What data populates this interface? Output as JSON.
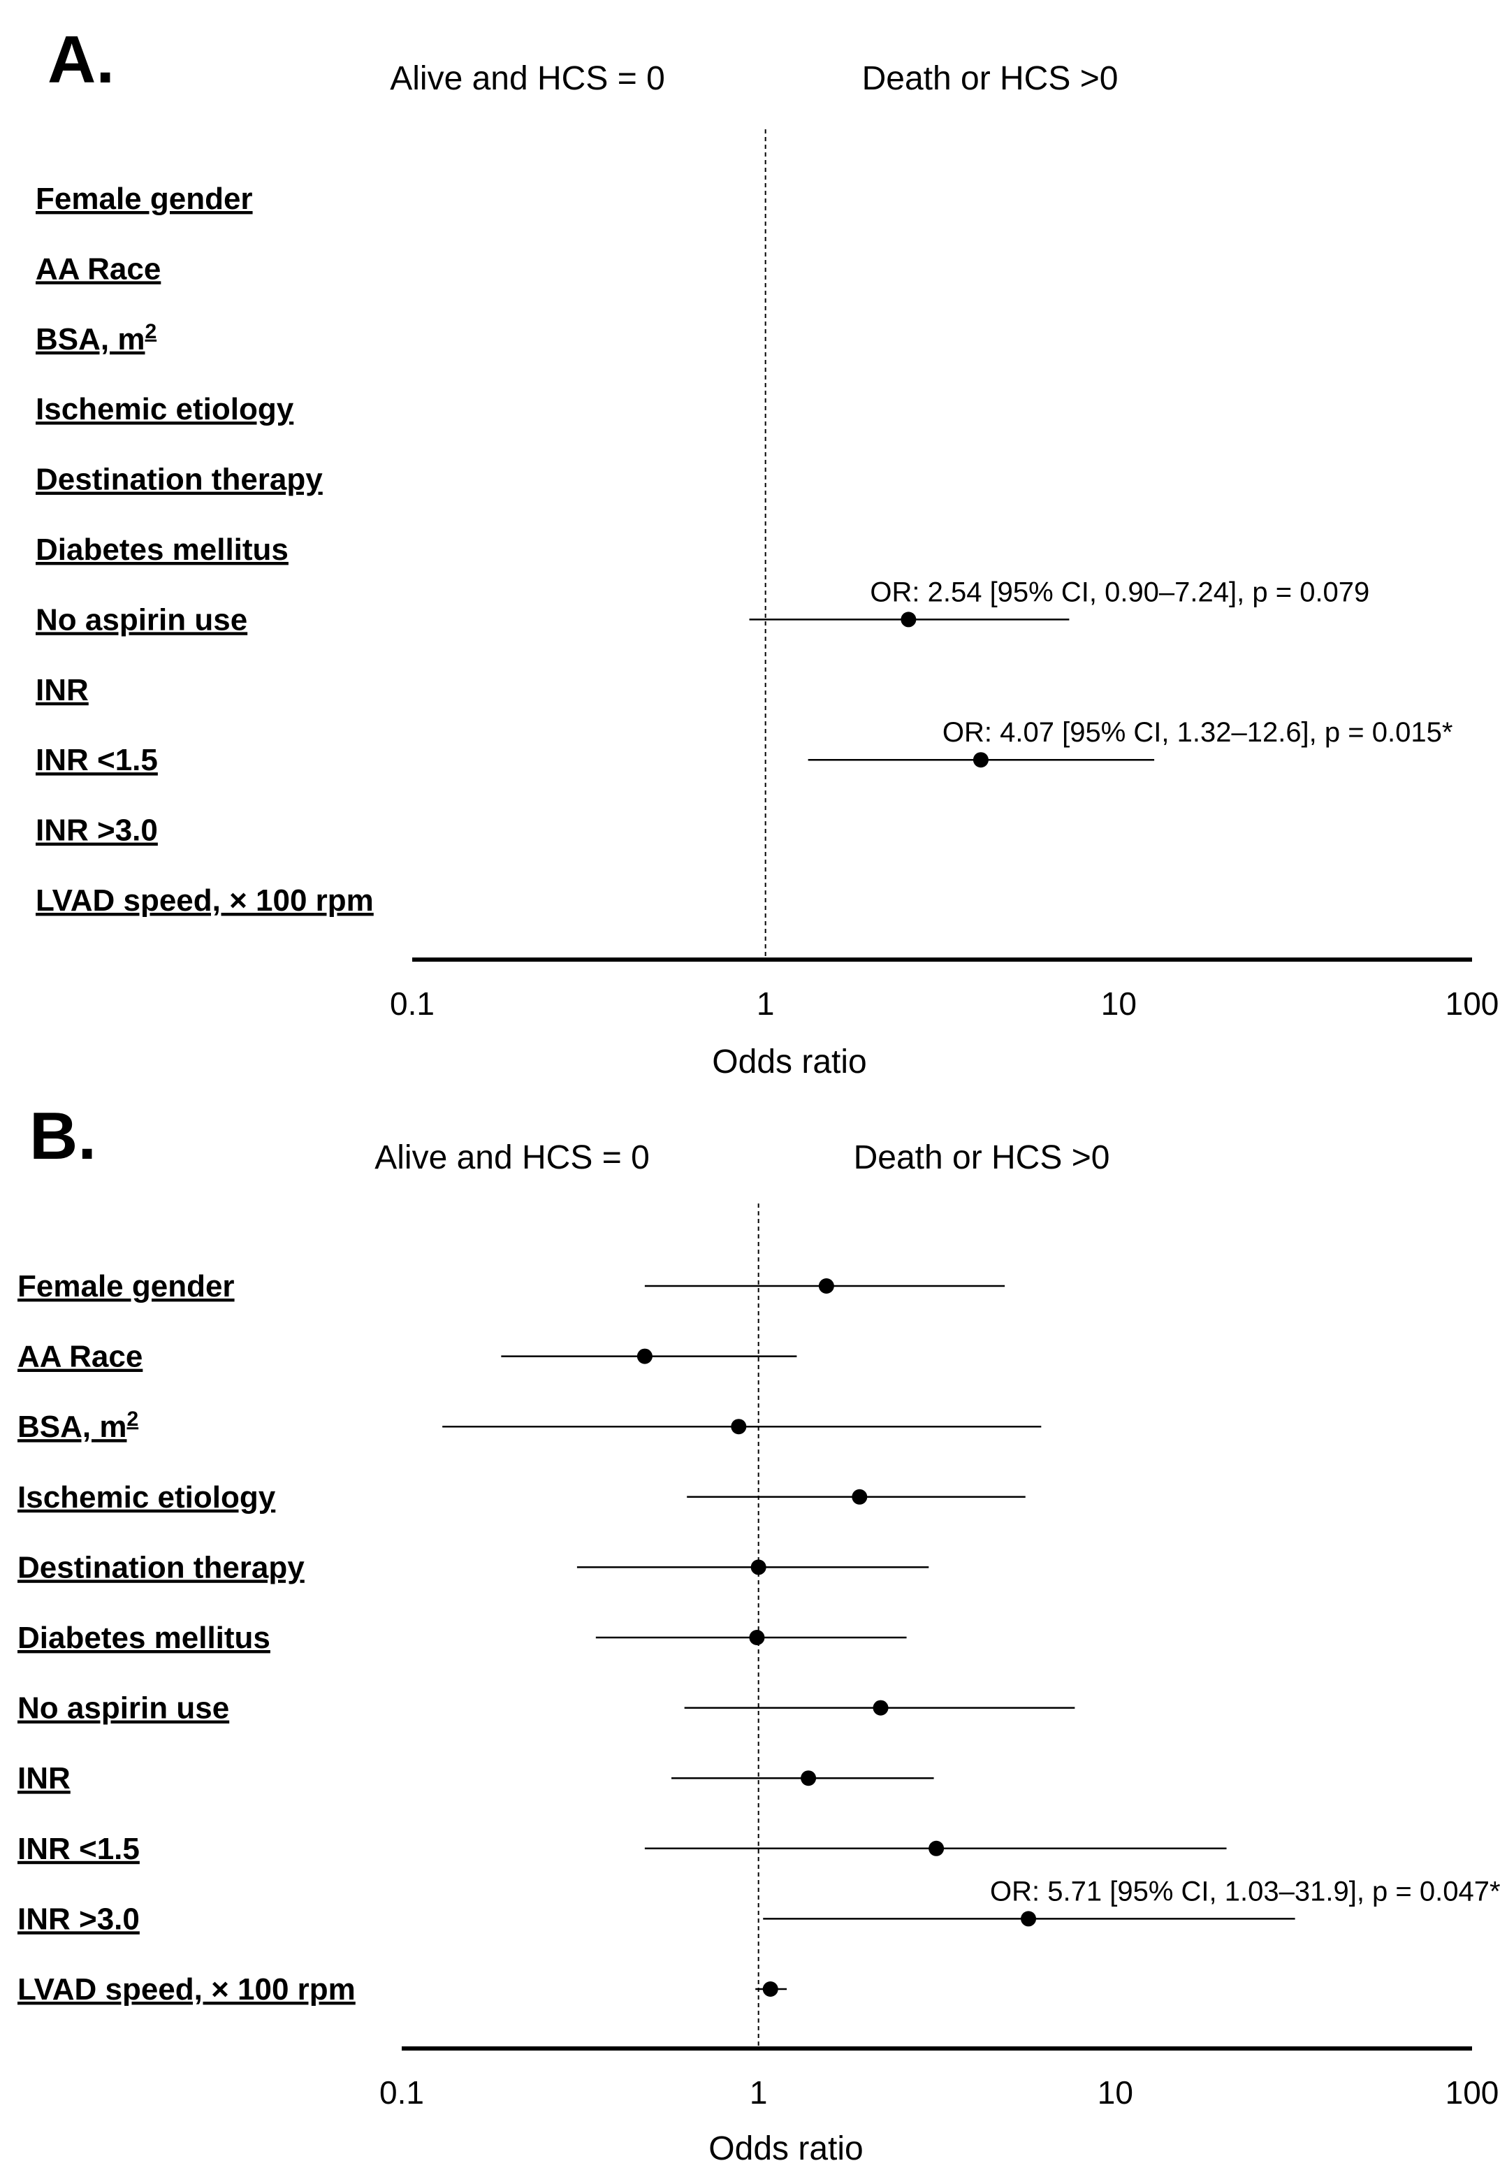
{
  "chart_data": [
    {
      "type": "forest",
      "panel": "A.",
      "group_left": "Alive  and HCS = 0",
      "group_right": "Death or HCS >0",
      "xlabel": "Odds ratio",
      "xscale": "log",
      "xlim": [
        0.1,
        100
      ],
      "xticks": [
        "0.1",
        "1",
        "10",
        "100"
      ],
      "reference_line": 1,
      "rows": [
        {
          "label": "Female gender",
          "sup": "",
          "or": null,
          "lo": null,
          "hi": null,
          "annotation": ""
        },
        {
          "label": "AA  Race",
          "sup": "",
          "or": null,
          "lo": null,
          "hi": null,
          "annotation": ""
        },
        {
          "label": "BSA,  m",
          "sup": "2",
          "or": null,
          "lo": null,
          "hi": null,
          "annotation": ""
        },
        {
          "label": "Ischemic  etiology",
          "sup": "",
          "or": null,
          "lo": null,
          "hi": null,
          "annotation": ""
        },
        {
          "label": "Destination therapy",
          "sup": "",
          "or": null,
          "lo": null,
          "hi": null,
          "annotation": ""
        },
        {
          "label": "Diabetes mellitus",
          "sup": "",
          "or": null,
          "lo": null,
          "hi": null,
          "annotation": ""
        },
        {
          "label": "No aspirin use",
          "sup": "",
          "or": 2.54,
          "lo": 0.9,
          "hi": 7.24,
          "annotation": "OR: 2.54 [95%  CI, 0.90–7.24], p = 0.079"
        },
        {
          "label": "INR",
          "sup": "",
          "or": null,
          "lo": null,
          "hi": null,
          "annotation": ""
        },
        {
          "label": "INR <1.5",
          "sup": "",
          "or": 4.07,
          "lo": 1.32,
          "hi": 12.6,
          "annotation": "OR: 4.07 [95%  CI, 1.32–12.6], p = 0.015*"
        },
        {
          "label": "INR >3.0",
          "sup": "",
          "or": null,
          "lo": null,
          "hi": null,
          "annotation": ""
        },
        {
          "label": "LVAD  speed,  × 100 rpm",
          "sup": "",
          "or": null,
          "lo": null,
          "hi": null,
          "annotation": ""
        }
      ]
    },
    {
      "type": "forest",
      "panel": "B.",
      "group_left": "Alive  and HCS = 0",
      "group_right": "Death or HCS >0",
      "xlabel": "Odds ratio",
      "xscale": "log",
      "xlim": [
        0.1,
        100
      ],
      "xticks": [
        "0.1",
        "1",
        "10",
        "100"
      ],
      "reference_line": 1,
      "rows": [
        {
          "label": "Female gender",
          "sup": "",
          "or": 1.55,
          "lo": 0.48,
          "hi": 4.9,
          "annotation": ""
        },
        {
          "label": "AA  Race",
          "sup": "",
          "or": 0.48,
          "lo": 0.19,
          "hi": 1.28,
          "annotation": ""
        },
        {
          "label": "BSA,  m",
          "sup": "2",
          "or": 0.88,
          "lo": 0.13,
          "hi": 6.2,
          "annotation": ""
        },
        {
          "label": "Ischemic  etiology",
          "sup": "",
          "or": 1.92,
          "lo": 0.63,
          "hi": 5.6,
          "annotation": ""
        },
        {
          "label": "Destination therapy",
          "sup": "",
          "or": 1.0,
          "lo": 0.31,
          "hi": 3.0,
          "annotation": ""
        },
        {
          "label": "Diabetes mellitus",
          "sup": "",
          "or": 0.99,
          "lo": 0.35,
          "hi": 2.6,
          "annotation": ""
        },
        {
          "label": "No aspirin use",
          "sup": "",
          "or": 2.2,
          "lo": 0.62,
          "hi": 7.7,
          "annotation": ""
        },
        {
          "label": "INR",
          "sup": "",
          "or": 1.38,
          "lo": 0.57,
          "hi": 3.1,
          "annotation": ""
        },
        {
          "label": "INR <1.5",
          "sup": "",
          "or": 3.15,
          "lo": 0.48,
          "hi": 20.5,
          "annotation": ""
        },
        {
          "label": "INR >3.0",
          "sup": "",
          "or": 5.71,
          "lo": 1.03,
          "hi": 31.9,
          "annotation": "OR: 5.71 [95%  CI, 1.03–31.9], p = 0.047*"
        },
        {
          "label": "LVAD  speed,  × 100 rpm",
          "sup": "",
          "or": 1.08,
          "lo": 0.98,
          "hi": 1.2,
          "annotation": ""
        }
      ]
    }
  ]
}
